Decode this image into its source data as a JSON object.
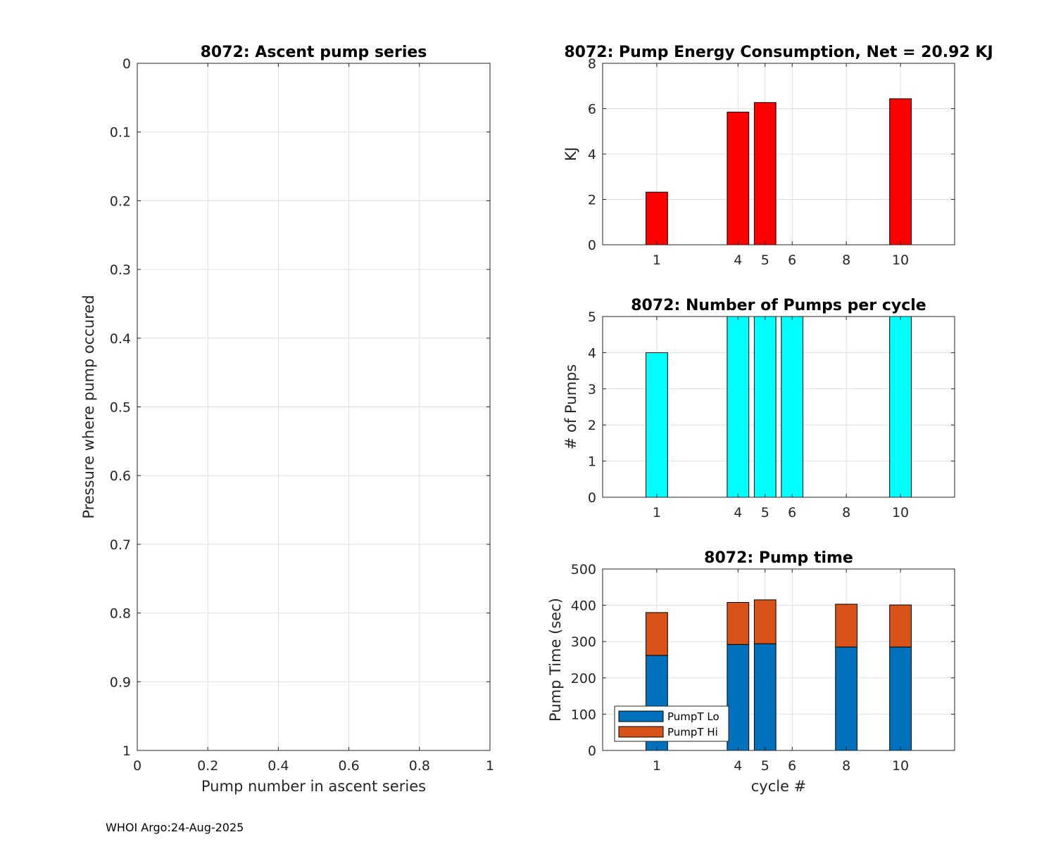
{
  "colors": {
    "energy": "#ff0000",
    "pumps": "#00ffff",
    "lo": "#0072bd",
    "hi": "#d95319"
  },
  "footer": "WHOI Argo:24-Aug-2025",
  "chart_data": [
    {
      "id": "ascent",
      "type": "scatter",
      "title": "8072: Ascent pump series",
      "xlabel": "Pump number in ascent series",
      "ylabel": "Pressure where pump occured",
      "xlim": [
        0,
        1
      ],
      "ylim": [
        0,
        1
      ],
      "y_reversed": true,
      "xticks": [
        0,
        0.2,
        0.4,
        0.6,
        0.8,
        1
      ],
      "xtick_labels": [
        "0",
        "0.2",
        "0.4",
        "0.6",
        "0.8",
        "1"
      ],
      "yticks": [
        0,
        0.1,
        0.2,
        0.3,
        0.4,
        0.5,
        0.6,
        0.7,
        0.8,
        0.9,
        1
      ],
      "ytick_labels": [
        "0",
        "0.1",
        "0.2",
        "0.3",
        "0.4",
        "0.5",
        "0.6",
        "0.7",
        "0.8",
        "0.9",
        "1"
      ],
      "grid": true,
      "series": []
    },
    {
      "id": "energy",
      "type": "bar",
      "title": "8072: Pump Energy Consumption,  Net =  20.92 KJ",
      "xlabel": "",
      "ylabel": "KJ",
      "xlim": [
        -1,
        12
      ],
      "ylim": [
        0,
        8
      ],
      "xticks": [
        1,
        4,
        5,
        6,
        8,
        10
      ],
      "xtick_labels": [
        "1",
        "4",
        "5",
        "6",
        "8",
        "10"
      ],
      "yticks": [
        0,
        2,
        4,
        6,
        8
      ],
      "ytick_labels": [
        "0",
        "2",
        "4",
        "6",
        "8"
      ],
      "grid": true,
      "bar_width": 0.8,
      "x": [
        1,
        4,
        5,
        10
      ],
      "values": [
        2.32,
        5.85,
        6.27,
        6.44
      ]
    },
    {
      "id": "pumps",
      "type": "bar",
      "title": "8072: Number of Pumps per cycle",
      "xlabel": "",
      "ylabel": "# of Pumps",
      "xlim": [
        -1,
        12
      ],
      "ylim": [
        0,
        5
      ],
      "xticks": [
        1,
        4,
        5,
        6,
        8,
        10
      ],
      "xtick_labels": [
        "1",
        "4",
        "5",
        "6",
        "8",
        "10"
      ],
      "yticks": [
        0,
        1,
        2,
        3,
        4,
        5
      ],
      "ytick_labels": [
        "0",
        "1",
        "2",
        "3",
        "4",
        "5"
      ],
      "grid": true,
      "bar_width": 0.8,
      "x": [
        1,
        4,
        5,
        6,
        10
      ],
      "values": [
        4,
        5,
        5,
        5,
        5
      ]
    },
    {
      "id": "pumptime",
      "type": "bar",
      "stacked": true,
      "title": "8072: Pump time",
      "xlabel": "cycle #",
      "ylabel": "Pump Time (sec)",
      "xlim": [
        -1,
        12
      ],
      "ylim": [
        0,
        500
      ],
      "xticks": [
        1,
        4,
        5,
        6,
        8,
        10
      ],
      "xtick_labels": [
        "1",
        "4",
        "5",
        "6",
        "8",
        "10"
      ],
      "yticks": [
        0,
        100,
        200,
        300,
        400,
        500
      ],
      "ytick_labels": [
        "0",
        "100",
        "200",
        "300",
        "400",
        "500"
      ],
      "grid": true,
      "bar_width": 0.8,
      "legend": {
        "position": "bottom-left",
        "entries": [
          "PumpT Lo",
          "PumpT Hi"
        ]
      },
      "x": [
        1,
        4,
        5,
        8,
        10
      ],
      "series": [
        {
          "name": "PumpT Lo",
          "values": [
            262,
            292,
            294,
            285,
            285
          ]
        },
        {
          "name": "PumpT Hi",
          "values": [
            118,
            116,
            121,
            118,
            116
          ]
        }
      ]
    }
  ]
}
